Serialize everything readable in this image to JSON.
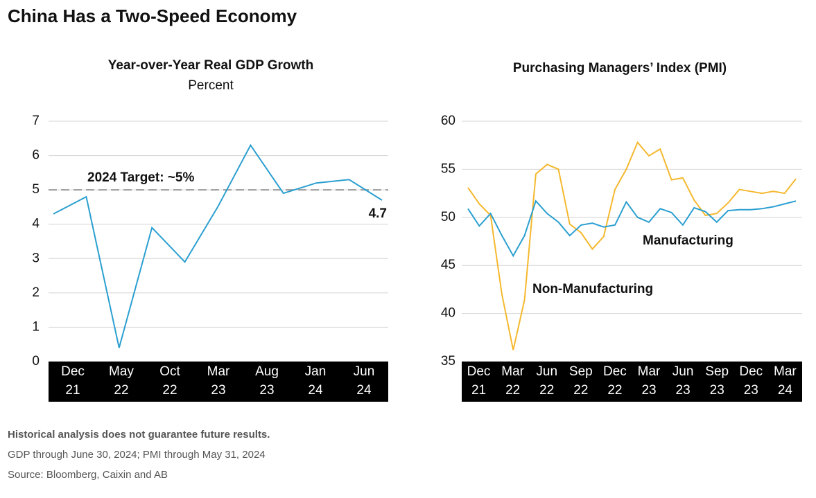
{
  "title": "China Has a Two-Speed Economy",
  "footnotes": [
    "Historical analysis does not guarantee future results.",
    "GDP through June 30, 2024; PMI through May 31, 2024",
    "Source: Bloomberg, Caixin and AB"
  ],
  "chart_data": [
    {
      "type": "line",
      "title": "Year-over-Year Real GDP Growth",
      "subtitle": "Percent",
      "xticks": [
        "Dec\n21",
        "May\n22",
        "Oct\n22",
        "Mar\n23",
        "Aug\n23",
        "Jan\n24",
        "Jun\n24"
      ],
      "series": [
        {
          "color": "#2a9fd0",
          "values": [
            4.3,
            4.8,
            0.4,
            3.9,
            2.9,
            4.5,
            6.3,
            4.9,
            5.2,
            5.3,
            4.7
          ]
        }
      ],
      "label_last": true,
      "reference_line": {
        "value": 5,
        "label": "2024 Target: ~5%",
        "color": "#999999"
      },
      "ylim": [
        0,
        7
      ],
      "yticks": [
        0,
        1,
        2,
        3,
        4,
        5,
        6,
        7
      ],
      "grid": true
    },
    {
      "type": "line",
      "title": "Purchasing Managers’ Index (PMI)",
      "xticks": [
        "Dec\n21",
        "Mar\n22",
        "Jun\n22",
        "Sep\n22",
        "Dec\n22",
        "Mar\n23",
        "Jun\n23",
        "Sep\n23",
        "Dec\n23",
        "Mar\n24"
      ],
      "series": [
        {
          "name": "Non-Manufacturing",
          "color": "#f5b82e",
          "values": [
            53.1,
            51.4,
            50.2,
            42.0,
            36.2,
            41.4,
            54.5,
            55.5,
            55.0,
            49.3,
            48.4,
            46.7,
            48.0,
            52.9,
            55.0,
            57.8,
            56.4,
            57.1,
            53.9,
            54.1,
            51.8,
            50.2,
            50.4,
            51.5,
            52.9,
            52.7,
            52.5,
            52.7,
            52.5,
            54.0
          ]
        },
        {
          "name": "Manufacturing",
          "color": "#2a9fd0",
          "values": [
            50.9,
            49.1,
            50.4,
            48.1,
            46.0,
            48.1,
            51.7,
            50.4,
            49.5,
            48.1,
            49.2,
            49.4,
            49.0,
            49.2,
            51.6,
            50.0,
            49.5,
            50.9,
            50.5,
            49.2,
            51.0,
            50.6,
            49.5,
            50.7,
            50.8,
            50.8,
            50.9,
            51.1,
            51.4,
            51.7
          ]
        }
      ],
      "ylim": [
        35,
        60
      ],
      "yticks": [
        35,
        40,
        45,
        50,
        55,
        60
      ],
      "grid": true
    }
  ]
}
